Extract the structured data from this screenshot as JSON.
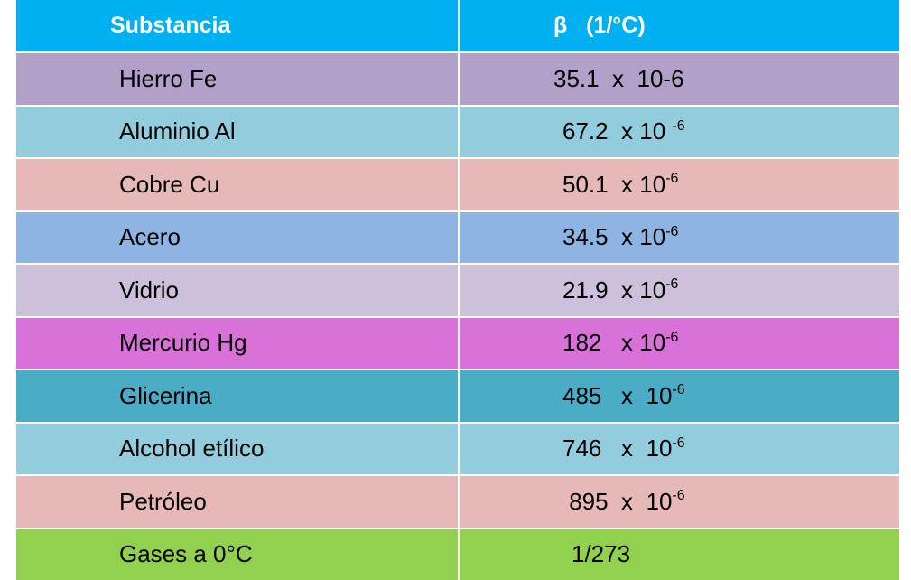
{
  "table": {
    "header": [
      "Substancia",
      "β   (1/°C)"
    ],
    "rows": [
      {
        "substance": "Hierro Fe",
        "value": "35.1  x  10-6"
      },
      {
        "substance": "Aluminio Al",
        "value": "67.2  x 10 ",
        "exponent": "-6"
      },
      {
        "substance": "Cobre Cu",
        "value": "50.1  x 10",
        "exponent": "-6"
      },
      {
        "substance": "Acero",
        "value": "34.5  x 10",
        "exponent": "-6"
      },
      {
        "substance": "Vidrio",
        "value": "21.9  x 10",
        "exponent": "-6"
      },
      {
        "substance": "Mercurio Hg",
        "value": "182   x 10",
        "exponent": "-6"
      },
      {
        "substance": "Glicerina",
        "value": "485   x  10",
        "exponent": "-6"
      },
      {
        "substance": "Alcohol etílico",
        "value": "746   x  10",
        "exponent": "-6"
      },
      {
        "substance": "Petróleo",
        "value": " 895  x  10",
        "exponent": "-6"
      },
      {
        "substance": "Gases a 0°C",
        "value": "1/273"
      }
    ]
  }
}
